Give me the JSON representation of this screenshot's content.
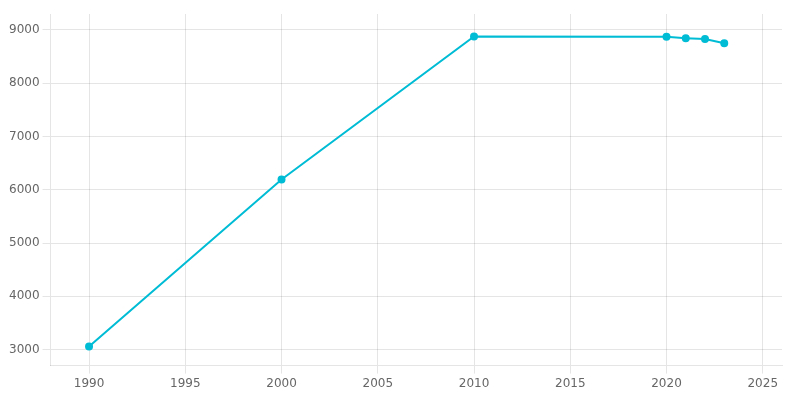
{
  "chart_data": {
    "type": "line",
    "x": [
      1990,
      2000,
      2010,
      2020,
      2021,
      2022,
      2023
    ],
    "values": [
      3059,
      6194,
      8877,
      8872,
      8847,
      8829,
      8750
    ],
    "color": "#00BCD4",
    "marker": "circle",
    "line_style": "solid",
    "xlim": [
      1988,
      2026
    ],
    "xticks": [
      1990,
      1995,
      2000,
      2005,
      2010,
      2015,
      2020,
      2025
    ],
    "ylim": [
      2700,
      9300
    ],
    "yticks": [
      3000,
      4000,
      5000,
      6000,
      7000,
      8000,
      9000
    ],
    "grid": true
  }
}
